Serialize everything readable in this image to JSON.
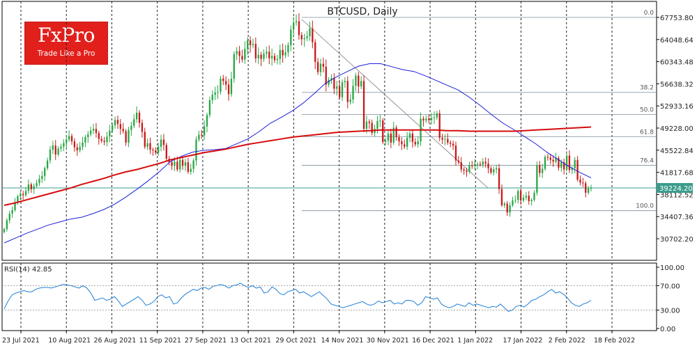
{
  "logo": {
    "brand": "FxPro",
    "tagline": "Trade Like a Pro"
  },
  "chart_data": {
    "type": "candlestick",
    "title": "BTCUSD, Daily",
    "symbol": "BTCUSD",
    "timeframe": "Daily",
    "x_tick_labels": [
      "23 Jul 2021",
      "10 Aug 2021",
      "26 Aug 2021",
      "11 Sep 2021",
      "27 Sep 2021",
      "13 Oct 2021",
      "29 Oct 2021",
      "14 Nov 2021",
      "30 Nov 2021",
      "16 Dec 2021",
      "1 Jan 2022",
      "17 Jan 2022",
      "2 Feb 2022",
      "18 Feb 2022"
    ],
    "y_tick_labels": [
      "67753.80",
      "64048.64",
      "60343.48",
      "56638.32",
      "52933.16",
      "49228.00",
      "45522.84",
      "41817.68",
      "38112.52",
      "34407.36",
      "30702.20"
    ],
    "ylim": [
      28000,
      69500
    ],
    "grid": "vertical dashed",
    "current_price": 39224.2,
    "current_price_label": "39224.20",
    "close_prices": [
      32300,
      33800,
      34900,
      35500,
      36800,
      37800,
      38200,
      38000,
      38700,
      39800,
      39000,
      39500,
      40000,
      40700,
      41200,
      42500,
      43800,
      45600,
      46300,
      44800,
      45800,
      46100,
      46700,
      47300,
      47900,
      47000,
      46000,
      45500,
      46100,
      46800,
      47700,
      48200,
      48800,
      49100,
      48400,
      47400,
      47100,
      46900,
      47800,
      48800,
      49700,
      50600,
      49900,
      49100,
      48700,
      46800,
      48900,
      49600,
      50700,
      51800,
      50100,
      48600,
      46100,
      46700,
      45600,
      45500,
      45100,
      46100,
      47300,
      46400,
      44100,
      43500,
      42900,
      43600,
      42300,
      43900,
      42900,
      43500,
      41900,
      42400,
      43800,
      47300,
      48100,
      48000,
      49500,
      51400,
      53900,
      54800,
      55200,
      55300,
      57500,
      57100,
      56500,
      54900,
      57500,
      61600,
      62100,
      61300,
      60700,
      62500,
      63900,
      63100,
      63300,
      60900,
      61500,
      60800,
      61700,
      62000,
      60900,
      61300,
      60600,
      60800,
      62300,
      61400,
      61900,
      63100,
      65700,
      66900,
      67100,
      64800,
      64100,
      64300,
      64600,
      65900,
      63600,
      60300,
      58600,
      60000,
      59500,
      56500,
      57300,
      57600,
      55800,
      56200,
      54400,
      56900,
      57100,
      53600,
      54000,
      56300,
      58000,
      56200,
      57100,
      49100,
      50300,
      50100,
      48400,
      49100,
      50400,
      50500,
      46900,
      47100,
      48300,
      46800,
      49300,
      47700,
      47000,
      46500,
      46100,
      47600,
      48300,
      46900,
      46500,
      47000,
      50800,
      50500,
      50800,
      50600,
      50900,
      51000,
      51700,
      47600,
      47300,
      47400,
      46800,
      46600,
      46300,
      43800,
      43500,
      42300,
      42100,
      41900,
      43000,
      42900,
      43200,
      43200,
      43100,
      43600,
      43300,
      42500,
      41800,
      42300,
      42500,
      39000,
      36300,
      36600,
      35100,
      36300,
      37100,
      37200,
      38700,
      37100,
      37600,
      37900,
      37000,
      37200,
      38400,
      43000,
      41700,
      42400,
      44400,
      44300,
      43900,
      43600,
      44200,
      42600,
      43500,
      42300,
      44600,
      42200,
      42500,
      43900,
      40600,
      40100,
      40000,
      38400,
      39100,
      39200
    ],
    "ma_short_approx": [
      30000,
      30800,
      31600,
      32300,
      33000,
      33500,
      34000,
      34300,
      34900,
      35600,
      36500,
      37700,
      39000,
      40400,
      41900,
      43600,
      44500,
      45200,
      45500,
      45600,
      45800,
      46600,
      47400,
      48600,
      50000,
      51000,
      52100,
      53400,
      55000,
      56700,
      57800,
      58700,
      59600,
      60000,
      60000,
      59500,
      59000,
      58700,
      58000,
      57200,
      56400,
      55600,
      54400,
      53000,
      51500,
      50100,
      49000,
      47800,
      46600,
      45200,
      44000,
      42800,
      41800,
      40900
    ],
    "ma_long_approx": [
      36300,
      36700,
      37200,
      37700,
      38200,
      38700,
      39200,
      39800,
      40300,
      40800,
      41400,
      41900,
      42300,
      42800,
      43300,
      43900,
      44300,
      44700,
      45100,
      45400,
      45700,
      46100,
      46500,
      46800,
      47100,
      47400,
      47700,
      47900,
      48100,
      48300,
      48500,
      48600,
      48700,
      48800,
      48900,
      48900,
      48900,
      48900,
      48900,
      48900,
      48800,
      48800,
      48700,
      48700,
      48700,
      48700,
      48700,
      48800,
      48900,
      49000,
      49100,
      49200,
      49300,
      49400
    ],
    "fibonacci": {
      "levels": [
        {
          "label": "0.0",
          "price": 67753.8
        },
        {
          "label": "38.2",
          "price": 55200
        },
        {
          "label": "50.0",
          "price": 51500
        },
        {
          "label": "61.8",
          "price": 47800
        },
        {
          "label": "76.4",
          "price": 43000
        },
        {
          "label": "100.0",
          "price": 35400
        }
      ]
    },
    "rsi": {
      "label": "RSI(14) 42.85",
      "period": 14,
      "value": 42.85,
      "y_tick_labels": [
        "100.00",
        "70.00",
        "30.00",
        "0.00"
      ],
      "ylim": [
        0,
        100
      ],
      "levels": [
        70,
        30
      ],
      "values_approx": [
        32,
        45,
        55,
        58,
        60,
        62,
        60,
        60,
        64,
        66,
        67,
        67,
        66,
        68,
        70,
        72,
        71,
        70,
        68,
        66,
        70,
        66,
        58,
        46,
        48,
        50,
        46,
        48,
        52,
        45,
        36,
        40,
        44,
        48,
        52,
        46,
        38,
        40,
        44,
        52,
        55,
        50,
        52,
        40,
        42,
        50,
        56,
        60,
        64,
        62,
        66,
        67,
        64,
        69,
        70,
        72,
        70,
        66,
        70,
        71,
        74,
        70,
        67,
        70,
        66,
        68,
        58,
        60,
        68,
        64,
        57,
        55,
        60,
        62,
        64,
        58,
        60,
        56,
        52,
        56,
        60,
        54,
        48,
        40,
        38,
        36,
        34,
        36,
        38,
        40,
        42,
        44,
        40,
        38,
        40,
        45,
        42,
        44,
        46,
        40,
        42,
        40,
        46,
        46,
        44,
        38,
        42,
        52,
        50,
        48,
        50,
        40,
        36,
        34,
        36,
        40,
        38,
        36,
        42,
        38,
        40,
        38,
        36,
        34,
        36,
        35,
        40,
        34,
        28,
        30,
        36,
        38,
        35,
        40,
        46,
        48,
        52,
        55,
        60,
        64,
        58,
        60,
        56,
        50,
        42,
        38,
        36,
        40,
        42,
        46
      ]
    }
  }
}
